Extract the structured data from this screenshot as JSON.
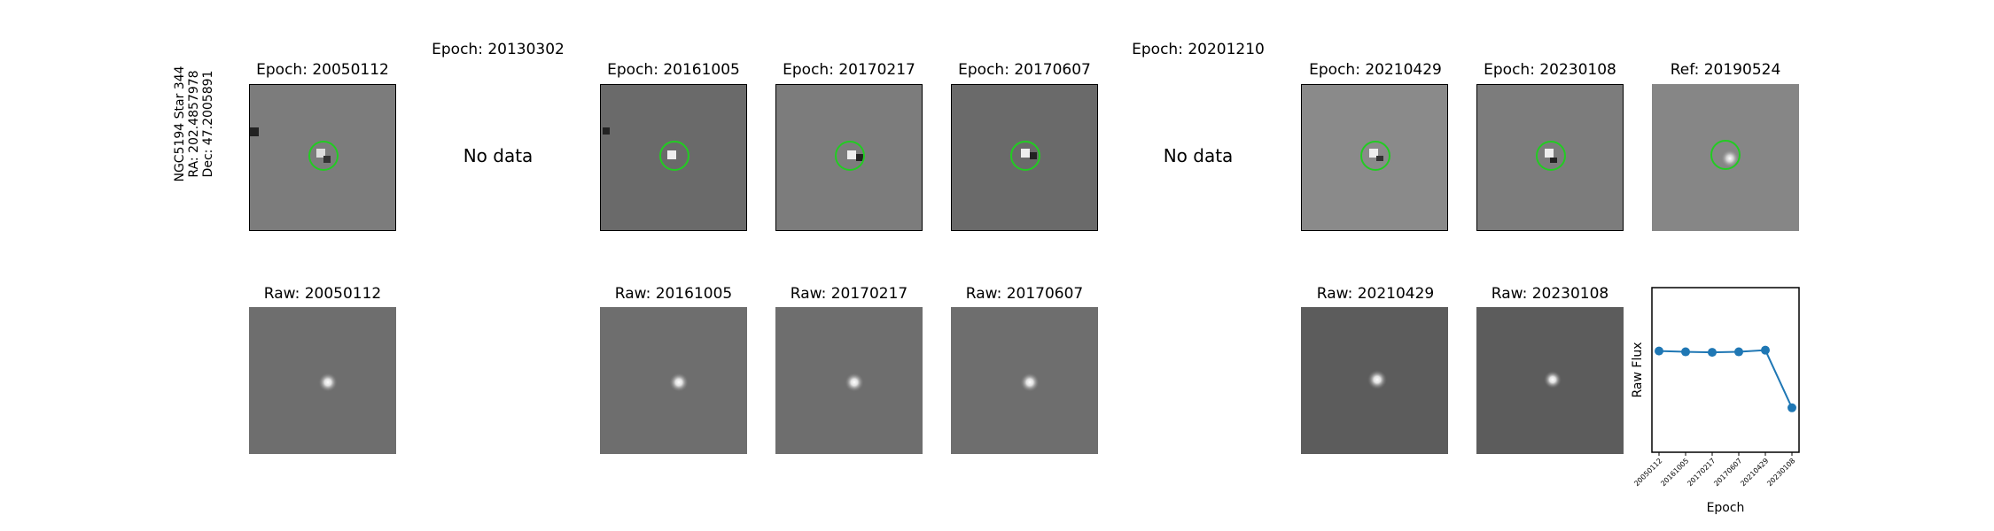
{
  "star_label": {
    "name": "NGC5194 Star 344",
    "ra": "RA: 202.4857978",
    "dec": "Dec: 47.2005891"
  },
  "top_row": [
    {
      "title": "Epoch: 20050112",
      "has_data": true
    },
    {
      "title": "Epoch: 20130302",
      "has_data": false,
      "no_data_text": "No data"
    },
    {
      "title": "Epoch: 20161005",
      "has_data": true
    },
    {
      "title": "Epoch: 20170217",
      "has_data": true
    },
    {
      "title": "Epoch: 20170607",
      "has_data": true
    },
    {
      "title": "Epoch: 20201210",
      "has_data": false,
      "no_data_text": "No data"
    },
    {
      "title": "Epoch: 20210429",
      "has_data": true
    },
    {
      "title": "Epoch: 20230108",
      "has_data": true
    },
    {
      "title": "Ref: 20190524",
      "has_data": true
    }
  ],
  "bottom_row": [
    {
      "title": "Raw: 20050112"
    },
    {
      "title": "Raw: 20161005"
    },
    {
      "title": "Raw: 20170217"
    },
    {
      "title": "Raw: 20170607"
    },
    {
      "title": "Raw: 20210429"
    },
    {
      "title": "Raw: 20230108"
    }
  ],
  "colors": {
    "circle": "#22cc22",
    "series": "#1f77b4"
  },
  "chart_data": {
    "type": "line",
    "categories": [
      "20050112",
      "20161005",
      "20170217",
      "20170607",
      "20210429",
      "20230108"
    ],
    "values": [
      0.615,
      0.61,
      0.607,
      0.61,
      0.62,
      0.27
    ],
    "ylim": [
      0,
      1
    ],
    "xlabel": "Epoch",
    "ylabel": "Raw Flux",
    "grid": false
  }
}
